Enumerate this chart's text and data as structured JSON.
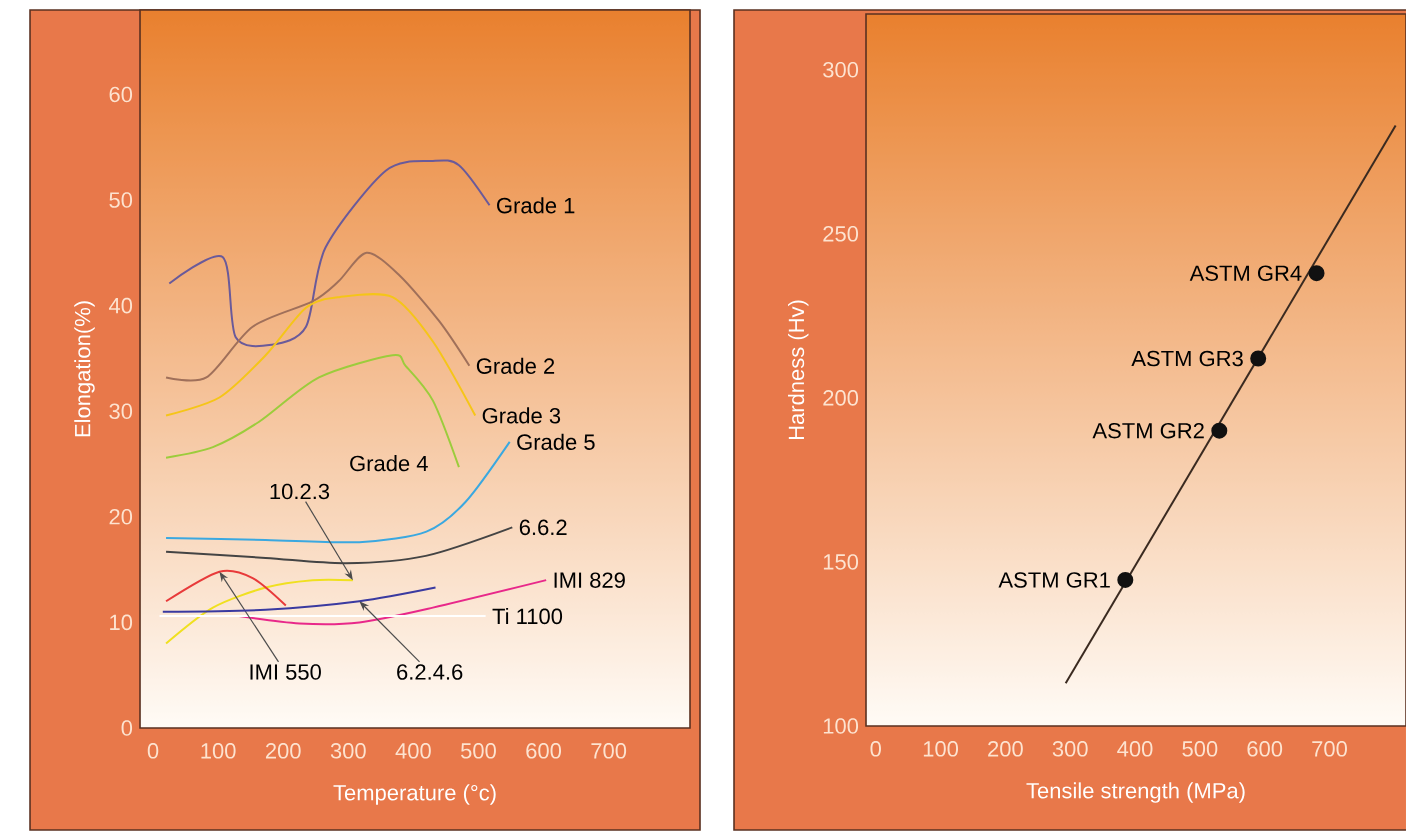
{
  "chart_data": [
    {
      "type": "line",
      "xlabel": "Temperature (°c)",
      "ylabel": "Elongation(%)",
      "xlim": [
        -20,
        825
      ],
      "ylim": [
        0,
        68
      ],
      "xticks": [
        0,
        100,
        200,
        300,
        400,
        500,
        600,
        700
      ],
      "yticks": [
        0,
        10,
        20,
        30,
        40,
        50,
        60
      ],
      "marker": "none",
      "line_style": "solid",
      "series": [
        {
          "name": "Grade 1",
          "color": "#6a5a9a",
          "x": [
            25,
            107,
            127,
            183,
            235,
            265,
            358,
            430,
            470,
            517
          ],
          "values": [
            42.1,
            44.6,
            37,
            36.3,
            38,
            45.5,
            52.8,
            53.7,
            53.3,
            49.5
          ]
        },
        {
          "name": "Grade 2",
          "color": "#a0705a",
          "x": [
            20,
            82,
            153,
            245,
            285,
            328,
            378,
            440,
            486
          ],
          "values": [
            33.2,
            33.2,
            38,
            40.4,
            42.3,
            45,
            42.9,
            38.5,
            34.3
          ]
        },
        {
          "name": "Grade 3",
          "color": "#f5c518",
          "x": [
            20,
            102,
            173,
            235,
            286,
            368,
            430,
            495
          ],
          "values": [
            29.6,
            31.3,
            35.3,
            39.8,
            40.8,
            40.8,
            36.6,
            29.6
          ]
        },
        {
          "name": "Grade 4",
          "color": "#9ccc3c",
          "x": [
            20,
            92,
            163,
            255,
            368,
            388,
            430,
            470
          ],
          "values": [
            25.6,
            26.6,
            29,
            33.2,
            35.3,
            34.3,
            31,
            24.7
          ]
        },
        {
          "name": "Grade 5",
          "color": "#3aa8e0",
          "x": [
            20,
            173,
            317,
            420,
            480,
            548
          ],
          "values": [
            18,
            17.8,
            17.6,
            18.6,
            21.4,
            27.1
          ]
        },
        {
          "name": "10.2.3",
          "color": "#f0e020",
          "x": [
            20,
            92,
            173,
            245,
            307
          ],
          "values": [
            8,
            11.4,
            13.3,
            14,
            14
          ]
        },
        {
          "name": "6.6.2",
          "color": "#444444",
          "x": [
            20,
            173,
            296,
            419,
            552
          ],
          "values": [
            16.7,
            16.1,
            15.6,
            16.3,
            19
          ]
        },
        {
          "name": "IMI 829",
          "color": "#e8288a",
          "x": [
            132,
            225,
            317,
            430,
            604
          ],
          "values": [
            10.6,
            9.9,
            10,
            11.4,
            14
          ]
        },
        {
          "name": "Ti 1100",
          "color": "#ffffff",
          "x": [
            10,
            511
          ],
          "values": [
            10.6,
            10.6
          ]
        },
        {
          "name": "IMI 550",
          "color": "#e83a3a",
          "x": [
            20,
            102,
            153,
            204
          ],
          "values": [
            12,
            14.8,
            14.2,
            11.6
          ]
        },
        {
          "name": "6.2.4.6",
          "color": "#3a3aa0",
          "x": [
            15,
            173,
            317,
            434
          ],
          "values": [
            11,
            11.2,
            12,
            13.3
          ]
        }
      ]
    },
    {
      "type": "scatter",
      "xlabel": "Tensile strength (MPa)",
      "ylabel": "Hardness (Hv)",
      "xlim": [
        -15,
        818
      ],
      "ylim": [
        100,
        317
      ],
      "xticks": [
        0,
        100,
        200,
        300,
        400,
        500,
        600,
        700
      ],
      "yticks": [
        100,
        150,
        200,
        250,
        300
      ],
      "series": [
        {
          "type": "line",
          "color": "#3a2a20",
          "x": [
            293,
            802
          ],
          "values": [
            113,
            283
          ]
        },
        {
          "name": "ASTM GR1",
          "marker": "circle",
          "color": "#111111",
          "x": [
            385
          ],
          "values": [
            144.5
          ]
        },
        {
          "name": "ASTM GR2",
          "marker": "circle",
          "color": "#111111",
          "x": [
            530
          ],
          "values": [
            190
          ]
        },
        {
          "name": "ASTM GR3",
          "marker": "circle",
          "color": "#111111",
          "x": [
            590
          ],
          "values": [
            212
          ]
        },
        {
          "name": "ASTM GR4",
          "marker": "circle",
          "color": "#111111",
          "x": [
            680
          ],
          "values": [
            238
          ]
        }
      ]
    }
  ]
}
